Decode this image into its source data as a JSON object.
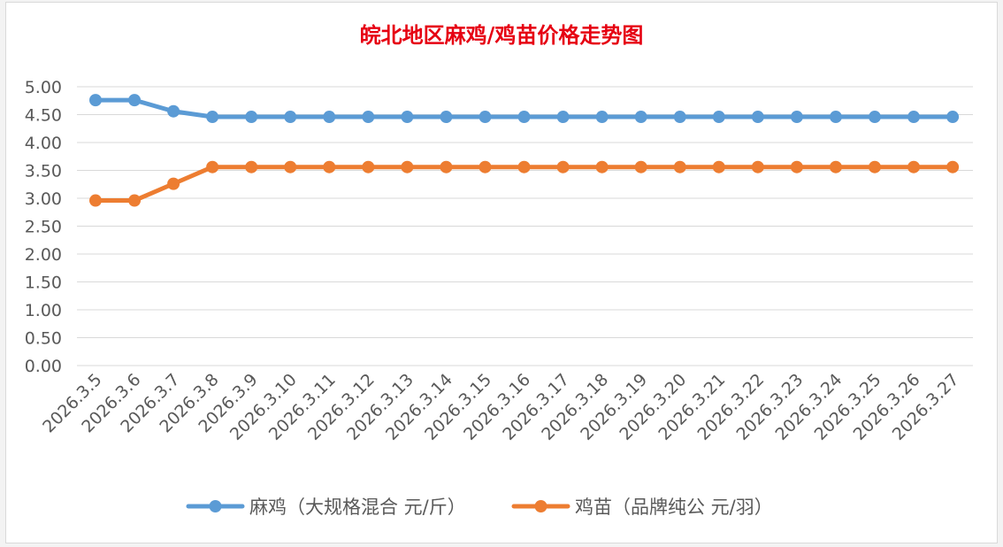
{
  "colors": {
    "series_1": "#5b9bd5",
    "series_2": "#ed7d31",
    "title": "#e60012",
    "gridline": "#d9d9d9",
    "tick_text": "#595959"
  },
  "chart_data": {
    "type": "line",
    "title": "皖北地区麻鸡/鸡苗价格走势图",
    "xlabel": "",
    "ylabel": "",
    "ylim": [
      0,
      5
    ],
    "y_ticks": [
      "0.00",
      "0.50",
      "1.00",
      "1.50",
      "2.00",
      "2.50",
      "3.00",
      "3.50",
      "4.00",
      "4.50",
      "5.00"
    ],
    "grid": true,
    "legend": "bottom",
    "categories": [
      "2026.3.5",
      "2026.3.6",
      "2026.3.7",
      "2026.3.8",
      "2026.3.9",
      "2026.3.10",
      "2026.3.11",
      "2026.3.12",
      "2026.3.13",
      "2026.3.14",
      "2026.3.15",
      "2026.3.16",
      "2026.3.17",
      "2026.3.18",
      "2026.3.19",
      "2026.3.20",
      "2026.3.21",
      "2026.3.22",
      "2026.3.23",
      "2026.3.24",
      "2026.3.25",
      "2026.3.26",
      "2026.3.27"
    ],
    "series": [
      {
        "name": "麻鸡（大规格混合 元/斤）",
        "values": [
          4.76,
          4.76,
          4.56,
          4.46,
          4.46,
          4.46,
          4.46,
          4.46,
          4.46,
          4.46,
          4.46,
          4.46,
          4.46,
          4.46,
          4.46,
          4.46,
          4.46,
          4.46,
          4.46,
          4.46,
          4.46,
          4.46,
          4.46
        ]
      },
      {
        "name": "鸡苗（品牌纯公 元/羽）",
        "values": [
          2.96,
          2.96,
          3.26,
          3.56,
          3.56,
          3.56,
          3.56,
          3.56,
          3.56,
          3.56,
          3.56,
          3.56,
          3.56,
          3.56,
          3.56,
          3.56,
          3.56,
          3.56,
          3.56,
          3.56,
          3.56,
          3.56,
          3.56
        ]
      }
    ]
  }
}
